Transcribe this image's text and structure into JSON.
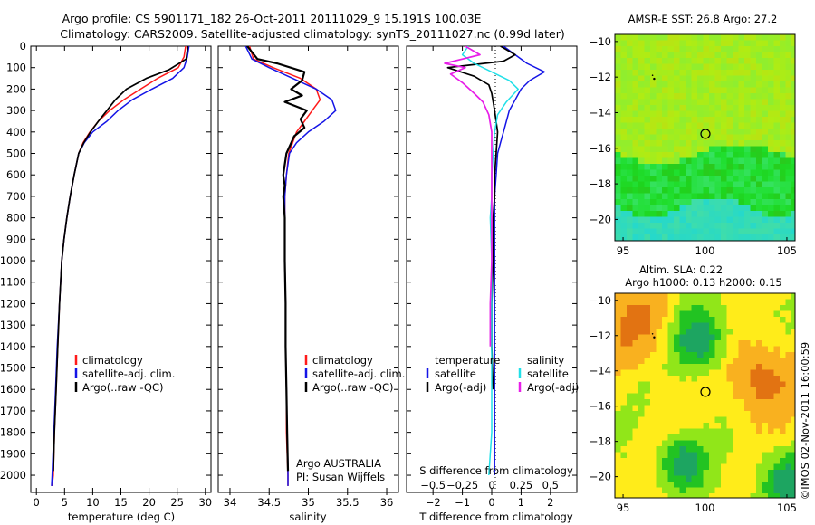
{
  "header": {
    "title_line1": "Argo profile: CS 5901171_182 26-Oct-2011 20111029_9 15.191S 100.03E",
    "title_line2": "Climatology: CARS2009. Satellite-adjusted climatology: synTS_20111027.nc (0.99d later)"
  },
  "colors": {
    "climatology": "#ff1a1a",
    "satellite": "#1414e6",
    "argo": "#000000",
    "satellite_s": "#22e0e8",
    "argo_s_adj": "#e81ee8"
  },
  "chart_data": [
    {
      "type": "line",
      "xlabel": "temperature (deg C)",
      "ylabel": "",
      "xlim": [
        -1,
        31
      ],
      "ylim": [
        2080,
        0
      ],
      "xticks": [
        0,
        5,
        10,
        15,
        20,
        25,
        30
      ],
      "yticks": [
        0,
        100,
        200,
        300,
        400,
        500,
        600,
        700,
        800,
        900,
        1000,
        1100,
        1200,
        1300,
        1400,
        1500,
        1600,
        1700,
        1800,
        1900,
        2000
      ],
      "legend": [
        "climatology",
        "satellite-adj. clim.",
        "Argo(..raw -QC)"
      ],
      "legend_position": "bottom-center",
      "series": [
        {
          "name": "climatology",
          "x": [
            26.5,
            26.2,
            25.2,
            21.5,
            18.5,
            15.5,
            13.0,
            11.0,
            9.5,
            8.3,
            7.5,
            6.7,
            6.0,
            5.4,
            4.9,
            4.5,
            4.1,
            3.8,
            3.5,
            3.2,
            3.0,
            2.8
          ],
          "y": [
            0,
            50,
            100,
            150,
            200,
            250,
            300,
            350,
            400,
            450,
            500,
            600,
            700,
            800,
            900,
            1000,
            1200,
            1400,
            1600,
            1800,
            2000,
            2050
          ]
        },
        {
          "name": "satellite-adj. clim.",
          "x": [
            27.1,
            26.8,
            26.2,
            24.2,
            20.5,
            17.0,
            14.5,
            12.5,
            10.0,
            8.5,
            7.5,
            6.7,
            6.0,
            5.4,
            4.9,
            4.5,
            4.1,
            3.7,
            3.4,
            3.1,
            2.8,
            2.7
          ],
          "y": [
            0,
            50,
            100,
            150,
            200,
            250,
            300,
            350,
            400,
            450,
            500,
            600,
            700,
            800,
            900,
            1000,
            1200,
            1400,
            1600,
            1800,
            2000,
            2050
          ]
        },
        {
          "name": "Argo(..raw -QC)",
          "x": [
            26.9,
            26.6,
            23.5,
            19.5,
            16.0,
            14.0,
            12.5,
            11.0,
            9.6,
            8.4,
            7.5,
            6.7,
            6.0,
            5.4,
            4.9,
            4.5,
            4.1,
            3.8,
            3.5,
            3.2,
            3.0
          ],
          "y": [
            0,
            60,
            110,
            150,
            200,
            250,
            300,
            350,
            400,
            450,
            500,
            600,
            700,
            800,
            900,
            1000,
            1200,
            1400,
            1600,
            1800,
            1980
          ]
        }
      ]
    },
    {
      "type": "line",
      "xlabel": "salinity",
      "xlim": [
        33.85,
        36.15
      ],
      "ylim": [
        2080,
        0
      ],
      "xticks": [
        34,
        34.5,
        35,
        35.5,
        36
      ],
      "legend": [
        "climatology",
        "satellite-adj. clim.",
        "Argo(..raw -QC)"
      ],
      "legend_position": "bottom-center",
      "annotations": [
        "Argo AUSTRALIA",
        "PI: Susan Wijffels"
      ],
      "series": [
        {
          "name": "climatology",
          "x": [
            34.25,
            34.3,
            34.55,
            34.9,
            35.1,
            35.15,
            35.05,
            34.95,
            34.85,
            34.75,
            34.72,
            34.7,
            34.7,
            34.7,
            34.71,
            34.71,
            34.72,
            34.72,
            34.73,
            34.74,
            34.74
          ],
          "y": [
            0,
            60,
            100,
            150,
            200,
            250,
            300,
            350,
            400,
            500,
            600,
            700,
            800,
            1000,
            1200,
            1400,
            1600,
            1800,
            1900,
            2000,
            2050
          ]
        },
        {
          "name": "satellite-adj. clim.",
          "x": [
            34.2,
            34.28,
            34.5,
            34.8,
            35.1,
            35.3,
            35.35,
            35.2,
            35.0,
            34.85,
            34.76,
            34.72,
            34.7,
            34.7,
            34.71,
            34.71,
            34.72,
            34.73,
            34.74,
            34.74
          ],
          "y": [
            0,
            60,
            100,
            150,
            200,
            250,
            300,
            350,
            400,
            450,
            500,
            600,
            700,
            1000,
            1200,
            1400,
            1600,
            1800,
            1950,
            2050
          ]
        },
        {
          "name": "Argo(..raw -QC)",
          "x": [
            34.22,
            34.35,
            34.6,
            34.95,
            34.92,
            34.78,
            34.92,
            34.7,
            34.98,
            34.9,
            34.95,
            34.82,
            34.72,
            34.68,
            34.7,
            34.68,
            34.7,
            34.7,
            34.71,
            34.71,
            34.72,
            34.73,
            34.74
          ],
          "y": [
            0,
            60,
            80,
            120,
            160,
            200,
            230,
            260,
            300,
            340,
            380,
            420,
            500,
            600,
            650,
            700,
            800,
            1000,
            1200,
            1400,
            1600,
            1800,
            1980
          ]
        }
      ]
    },
    {
      "type": "line",
      "xlabel": "T difference from climatology",
      "xlabel_top": "S difference from climatology",
      "xlim": [
        -2.9,
        2.9
      ],
      "ylim": [
        2080,
        0
      ],
      "xticks": [
        -2,
        -1,
        0,
        1,
        2
      ],
      "xticks_s": [
        -0.5,
        -0.25,
        0,
        0.25,
        0.5
      ],
      "legend_titles": [
        "temperature",
        "salinity"
      ],
      "legend": [
        "satellite",
        "Argo(-adj)",
        "satellite",
        "Argo(-adj)"
      ],
      "legend_position": "bottom-center",
      "series": [
        {
          "name": "satellite",
          "x": [
            0.4,
            0.8,
            1.2,
            1.8,
            1.3,
            1.0,
            0.8,
            0.6,
            0.5,
            0.4,
            0.3,
            0.2,
            0.15,
            0.1,
            0.1,
            0.1,
            0.1,
            0.1,
            0.1,
            0.1
          ],
          "y": [
            0,
            40,
            80,
            120,
            160,
            200,
            250,
            300,
            350,
            400,
            450,
            500,
            600,
            700,
            800,
            1000,
            1200,
            1400,
            1800,
            2000
          ]
        },
        {
          "name": "Argo(-adj)",
          "x": [
            0.3,
            0.8,
            0.4,
            -1.5,
            -0.6,
            -0.1,
            0.0,
            0.05,
            0.1,
            0.2,
            0.15,
            0.1,
            0.1,
            0.05,
            0.05,
            0.0,
            0.0,
            0.05
          ],
          "y": [
            0,
            40,
            70,
            100,
            140,
            180,
            220,
            260,
            300,
            400,
            500,
            600,
            700,
            800,
            1000,
            1200,
            1400,
            1600
          ]
        },
        {
          "name": "satellite",
          "x": [
            -0.8,
            -1.0,
            -0.6,
            0.0,
            0.6,
            0.9,
            0.5,
            0.2,
            0.1,
            0.05,
            0.0,
            0.0,
            -0.05,
            0.0,
            0.0,
            0.0,
            0.0,
            -0.1
          ],
          "y": [
            0,
            40,
            80,
            120,
            160,
            200,
            260,
            320,
            400,
            500,
            600,
            700,
            800,
            1000,
            1200,
            1500,
            1800,
            2000
          ]
        },
        {
          "name": "Argo(-adj)",
          "x": [
            -0.9,
            -0.4,
            -1.6,
            -0.9,
            -1.4,
            -1.0,
            -0.6,
            -0.3,
            -0.1,
            0.0,
            0.0,
            0.0,
            0.0,
            -0.05,
            -0.05
          ],
          "y": [
            0,
            40,
            80,
            100,
            130,
            170,
            220,
            260,
            320,
            400,
            600,
            800,
            1000,
            1200,
            1400
          ]
        }
      ]
    }
  ],
  "maps": [
    {
      "title": "AMSR-E SST: 26.8 Argo: 27.2",
      "xticks": [
        95,
        100,
        105
      ],
      "yticks": [
        -10,
        -12,
        -14,
        -16,
        -18,
        -20
      ],
      "xlim": [
        94.5,
        105.5
      ],
      "ylim": [
        -21.2,
        -9.6
      ],
      "marker": {
        "lon": 100.03,
        "lat": -15.191
      }
    },
    {
      "title_line1": "Altim. SLA: 0.22",
      "title_line2": "Argo h1000: 0.13 h2000: 0.15",
      "xticks": [
        95,
        100,
        105
      ],
      "yticks": [
        -10,
        -12,
        -14,
        -16,
        -18,
        -20
      ],
      "xlim": [
        94.5,
        105.5
      ],
      "ylim": [
        -21.2,
        -9.6
      ],
      "marker": {
        "lon": 100.03,
        "lat": -15.191
      }
    }
  ],
  "footer": {
    "credit": "©IMOS 02-Nov-2011 16:00:59"
  }
}
